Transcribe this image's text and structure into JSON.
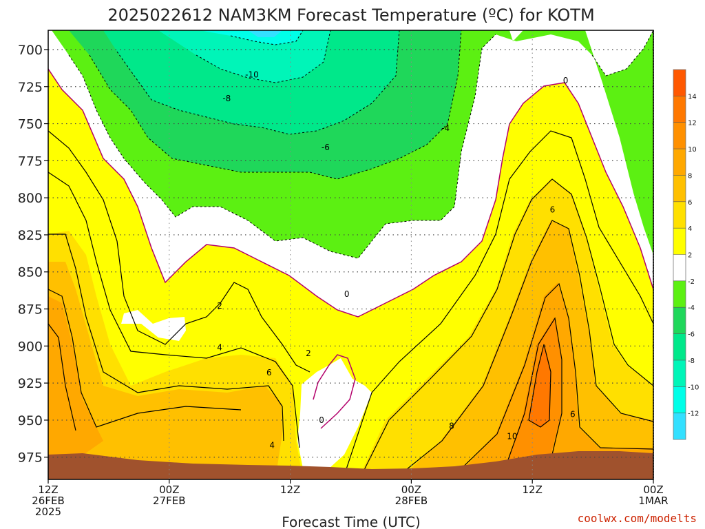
{
  "chart_data": {
    "type": "heatmap",
    "title": "2025022612 NAM3KM Forecast Temperature (ºC) for KOTM",
    "xlabel": "Forecast Time (UTC)",
    "ylabel": "",
    "credit": "coolwx.com/modelts",
    "x_ticks": [
      {
        "hour": 0,
        "line1": "12Z",
        "line2": "26FEB",
        "line3": "2025"
      },
      {
        "hour": 12,
        "line1": "00Z",
        "line2": "27FEB",
        "line3": ""
      },
      {
        "hour": 24,
        "line1": "12Z",
        "line2": "",
        "line3": ""
      },
      {
        "hour": 36,
        "line1": "00Z",
        "line2": "28FEB",
        "line3": ""
      },
      {
        "hour": 48,
        "line1": "12Z",
        "line2": "",
        "line3": ""
      },
      {
        "hour": 60,
        "line1": "00Z",
        "line2": "1MAR",
        "line3": ""
      }
    ],
    "xlim": [
      0,
      60
    ],
    "y_ticks": [
      700,
      725,
      750,
      775,
      800,
      825,
      850,
      875,
      900,
      925,
      950,
      975
    ],
    "ylim": [
      687,
      990
    ],
    "colorbar": {
      "levels": [
        -14,
        -12,
        -10,
        -8,
        -6,
        -4,
        -2,
        2,
        4,
        6,
        8,
        10,
        12,
        14,
        16
      ],
      "labels": [
        "-12",
        "-10",
        "-8",
        "-6",
        "-4",
        "-2",
        "2",
        "4",
        "6",
        "8",
        "10",
        "12",
        "14"
      ],
      "colors": [
        "#33e0ff",
        "#00ffe8",
        "#00f5b8",
        "#00e88a",
        "#1fd75a",
        "#5cf012",
        "#ffffff",
        "#ffff00",
        "#ffe000",
        "#ffc000",
        "#ffa800",
        "#ff9000",
        "#ff7800",
        "#ff5800"
      ]
    },
    "terrain_color": "#a0522d",
    "contour_labels": [
      {
        "hour": 20.2,
        "pres": 717,
        "text": "-10"
      },
      {
        "hour": 17.7,
        "pres": 733,
        "text": "-8"
      },
      {
        "hour": 27.5,
        "pres": 766,
        "text": "-6"
      },
      {
        "hour": 39.4,
        "pres": 753,
        "text": "-4"
      },
      {
        "hour": 51.3,
        "pres": 721,
        "text": "0"
      },
      {
        "hour": 29.6,
        "pres": 865,
        "text": "0"
      },
      {
        "hour": 27.1,
        "pres": 950,
        "text": "0"
      },
      {
        "hour": 17.0,
        "pres": 873,
        "text": "2"
      },
      {
        "hour": 25.8,
        "pres": 905,
        "text": "2"
      },
      {
        "hour": 17.0,
        "pres": 901,
        "text": "4"
      },
      {
        "hour": 22.2,
        "pres": 967,
        "text": "4"
      },
      {
        "hour": 21.9,
        "pres": 918,
        "text": "6"
      },
      {
        "hour": 50.0,
        "pres": 808,
        "text": "6"
      },
      {
        "hour": 52.0,
        "pres": 946,
        "text": "6"
      },
      {
        "hour": 40.0,
        "pres": 954,
        "text": "8"
      },
      {
        "hour": 46.0,
        "pres": 961,
        "text": "10"
      }
    ]
  }
}
